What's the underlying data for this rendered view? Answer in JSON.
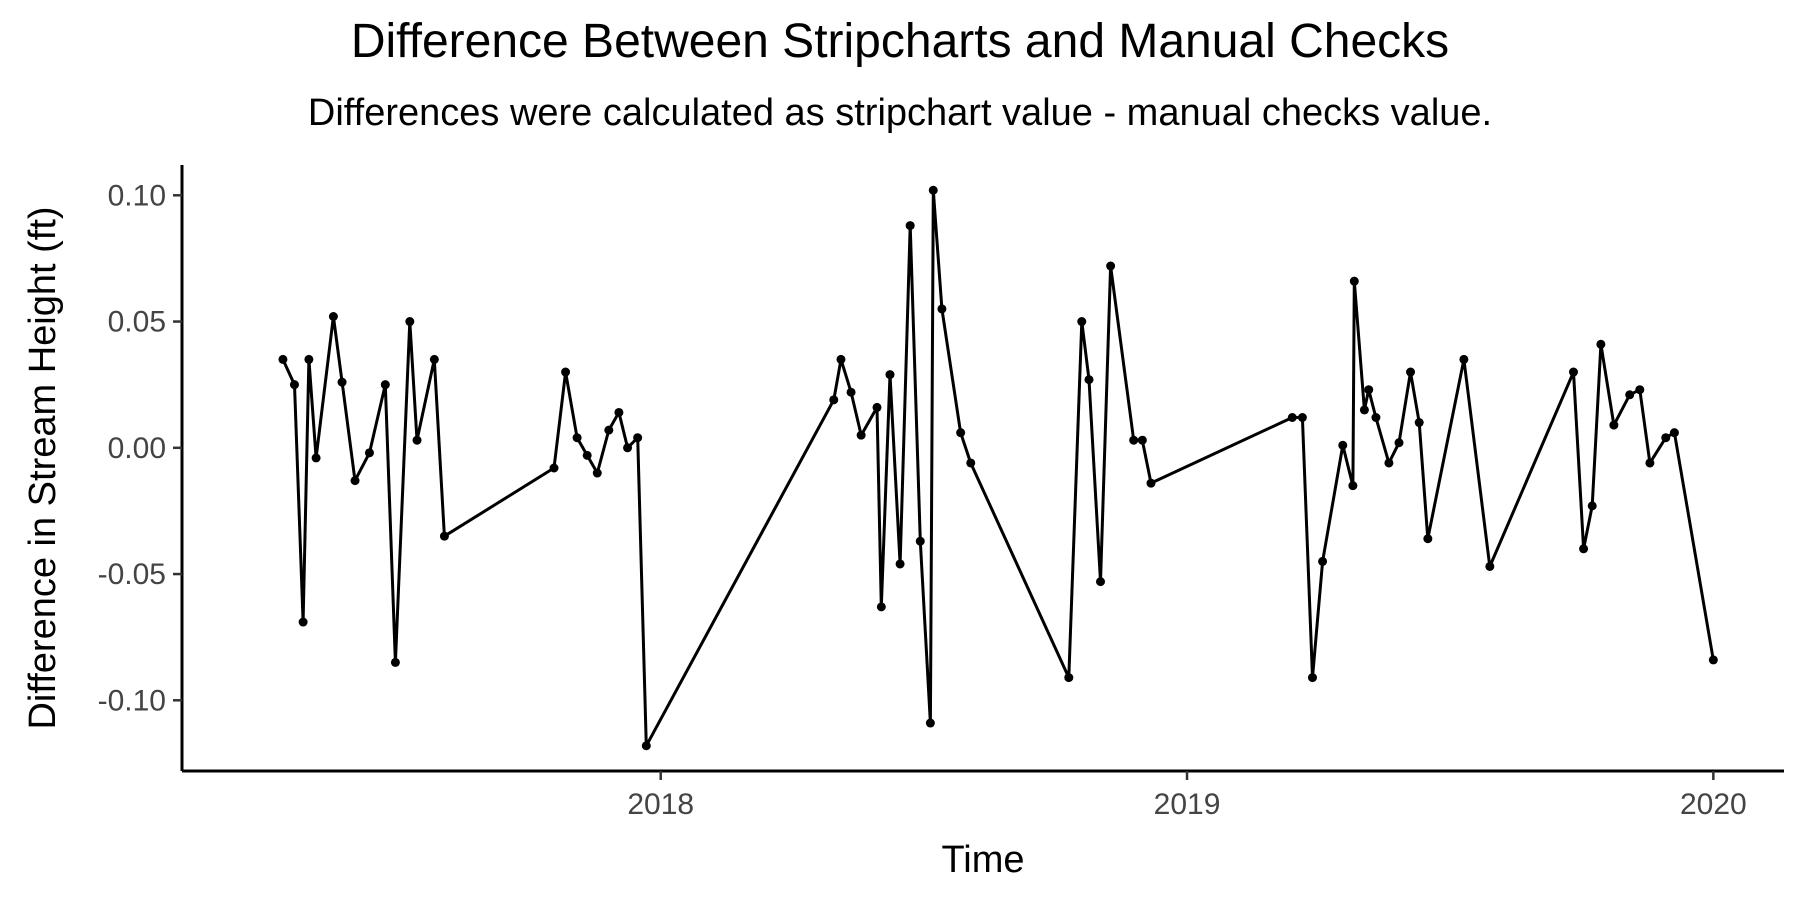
{
  "chart_data": {
    "type": "line",
    "title": "Difference Between Stripcharts and Manual Checks",
    "subtitle": "Differences were calculated as stripchart value - manual checks value.",
    "xlabel": "Time",
    "ylabel": "Difference in Stream Height (ft)",
    "x_ticks": [
      "2018",
      "2019",
      "2020"
    ],
    "y_ticks": [
      "-0.10",
      "-0.05",
      "0.00",
      "0.05",
      "0.10"
    ],
    "ylim": [
      -0.128,
      0.112
    ],
    "xlim": [
      "2017-02-03",
      "2020-02-19"
    ],
    "grid": false,
    "legend": "none",
    "line_color": "#000000",
    "series": [
      {
        "points": [
          {
            "x": "2017-04-14",
            "y": 0.035
          },
          {
            "x": "2017-04-22",
            "y": 0.025
          },
          {
            "x": "2017-04-28",
            "y": -0.069
          },
          {
            "x": "2017-05-02",
            "y": 0.035
          },
          {
            "x": "2017-05-07",
            "y": -0.004
          },
          {
            "x": "2017-05-19",
            "y": 0.052
          },
          {
            "x": "2017-05-25",
            "y": 0.026
          },
          {
            "x": "2017-06-03",
            "y": -0.013
          },
          {
            "x": "2017-06-13",
            "y": -0.002
          },
          {
            "x": "2017-06-24",
            "y": 0.025
          },
          {
            "x": "2017-07-01",
            "y": -0.085
          },
          {
            "x": "2017-07-11",
            "y": 0.05
          },
          {
            "x": "2017-07-16",
            "y": 0.003
          },
          {
            "x": "2017-07-28",
            "y": 0.035
          },
          {
            "x": "2017-08-04",
            "y": -0.035
          },
          {
            "x": "2017-10-19",
            "y": -0.008
          },
          {
            "x": "2017-10-27",
            "y": 0.03
          },
          {
            "x": "2017-11-04",
            "y": 0.004
          },
          {
            "x": "2017-11-11",
            "y": -0.003
          },
          {
            "x": "2017-11-18",
            "y": -0.01
          },
          {
            "x": "2017-11-26",
            "y": 0.007
          },
          {
            "x": "2017-12-03",
            "y": 0.014
          },
          {
            "x": "2017-12-09",
            "y": 0.0
          },
          {
            "x": "2017-12-16",
            "y": 0.004
          },
          {
            "x": "2017-12-22",
            "y": -0.118
          },
          {
            "x": "2018-05-01",
            "y": 0.019
          },
          {
            "x": "2018-05-06",
            "y": 0.035
          },
          {
            "x": "2018-05-13",
            "y": 0.022
          },
          {
            "x": "2018-05-20",
            "y": 0.005
          },
          {
            "x": "2018-05-31",
            "y": 0.016
          },
          {
            "x": "2018-06-03",
            "y": -0.063
          },
          {
            "x": "2018-06-09",
            "y": 0.029
          },
          {
            "x": "2018-06-16",
            "y": -0.046
          },
          {
            "x": "2018-06-23",
            "y": 0.088
          },
          {
            "x": "2018-06-30",
            "y": -0.037
          },
          {
            "x": "2018-07-07",
            "y": -0.109
          },
          {
            "x": "2018-07-09",
            "y": 0.102
          },
          {
            "x": "2018-07-15",
            "y": 0.055
          },
          {
            "x": "2018-07-28",
            "y": 0.006
          },
          {
            "x": "2018-08-04",
            "y": -0.006
          },
          {
            "x": "2018-10-11",
            "y": -0.091
          },
          {
            "x": "2018-10-20",
            "y": 0.05
          },
          {
            "x": "2018-10-25",
            "y": 0.027
          },
          {
            "x": "2018-11-02",
            "y": -0.053
          },
          {
            "x": "2018-11-09",
            "y": 0.072
          },
          {
            "x": "2018-11-25",
            "y": 0.003
          },
          {
            "x": "2018-12-01",
            "y": 0.003
          },
          {
            "x": "2018-12-07",
            "y": -0.014
          },
          {
            "x": "2019-03-15",
            "y": 0.012
          },
          {
            "x": "2019-03-22",
            "y": 0.012
          },
          {
            "x": "2019-03-29",
            "y": -0.091
          },
          {
            "x": "2019-04-05",
            "y": -0.045
          },
          {
            "x": "2019-04-19",
            "y": 0.001
          },
          {
            "x": "2019-04-26",
            "y": -0.015
          },
          {
            "x": "2019-04-27",
            "y": 0.066
          },
          {
            "x": "2019-05-04",
            "y": 0.015
          },
          {
            "x": "2019-05-07",
            "y": 0.023
          },
          {
            "x": "2019-05-12",
            "y": 0.012
          },
          {
            "x": "2019-05-21",
            "y": -0.006
          },
          {
            "x": "2019-05-28",
            "y": 0.002
          },
          {
            "x": "2019-06-05",
            "y": 0.03
          },
          {
            "x": "2019-06-11",
            "y": 0.01
          },
          {
            "x": "2019-06-17",
            "y": -0.036
          },
          {
            "x": "2019-07-12",
            "y": 0.035
          },
          {
            "x": "2019-07-30",
            "y": -0.047
          },
          {
            "x": "2019-09-26",
            "y": 0.03
          },
          {
            "x": "2019-10-03",
            "y": -0.04
          },
          {
            "x": "2019-10-09",
            "y": -0.023
          },
          {
            "x": "2019-10-15",
            "y": 0.041
          },
          {
            "x": "2019-10-24",
            "y": 0.009
          },
          {
            "x": "2019-11-04",
            "y": 0.021
          },
          {
            "x": "2019-11-11",
            "y": 0.023
          },
          {
            "x": "2019-11-18",
            "y": -0.006
          },
          {
            "x": "2019-11-29",
            "y": 0.004
          },
          {
            "x": "2019-12-05",
            "y": 0.006
          },
          {
            "x": "2020-01-01",
            "y": -0.084
          }
        ]
      }
    ]
  }
}
